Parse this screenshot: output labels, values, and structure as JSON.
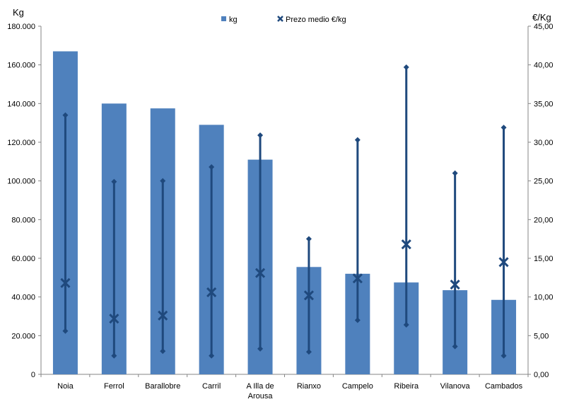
{
  "chart_data": {
    "type": "bar",
    "title": "",
    "ylabel": "Kg",
    "y2label": "€/Kg",
    "ylim": [
      0,
      180000
    ],
    "y2lim": [
      0,
      45
    ],
    "yticks": [
      "0",
      "20.000",
      "40.000",
      "60.000",
      "80.000",
      "100.000",
      "120.000",
      "140.000",
      "160.000",
      "180.000"
    ],
    "y2ticks": [
      "0,00",
      "5,00",
      "10,00",
      "15,00",
      "20,00",
      "25,00",
      "30,00",
      "35,00",
      "40,00",
      "45,00"
    ],
    "categories": [
      "Noia",
      "Ferrol",
      "Barallobre",
      "Carril",
      "A Illa de Arousa",
      "Rianxo",
      "Campelo",
      "Ribeira",
      "Vilanova",
      "Cambados"
    ],
    "legend": {
      "placement": "top-center",
      "bar_label": "kg",
      "marker_label": "Prezo medio €/kg"
    },
    "series": [
      {
        "name": "kg",
        "axis": "left",
        "type": "bar",
        "color": "#4F81BD",
        "values": [
          167000,
          140000,
          137500,
          129000,
          111000,
          55500,
          52000,
          47500,
          43500,
          38500
        ]
      },
      {
        "name": "Prezo medio €/kg",
        "axis": "right",
        "type": "high-low-avg",
        "color": "#1F497D",
        "high": [
          33.5,
          24.9,
          25.0,
          26.8,
          30.9,
          17.5,
          30.3,
          39.7,
          26.0,
          31.9
        ],
        "low": [
          5.6,
          2.4,
          3.0,
          2.4,
          3.3,
          2.9,
          7.0,
          6.4,
          3.6,
          2.4
        ],
        "avg": [
          11.8,
          7.2,
          7.6,
          10.6,
          13.1,
          10.2,
          12.4,
          16.8,
          11.6,
          14.5
        ]
      }
    ]
  }
}
